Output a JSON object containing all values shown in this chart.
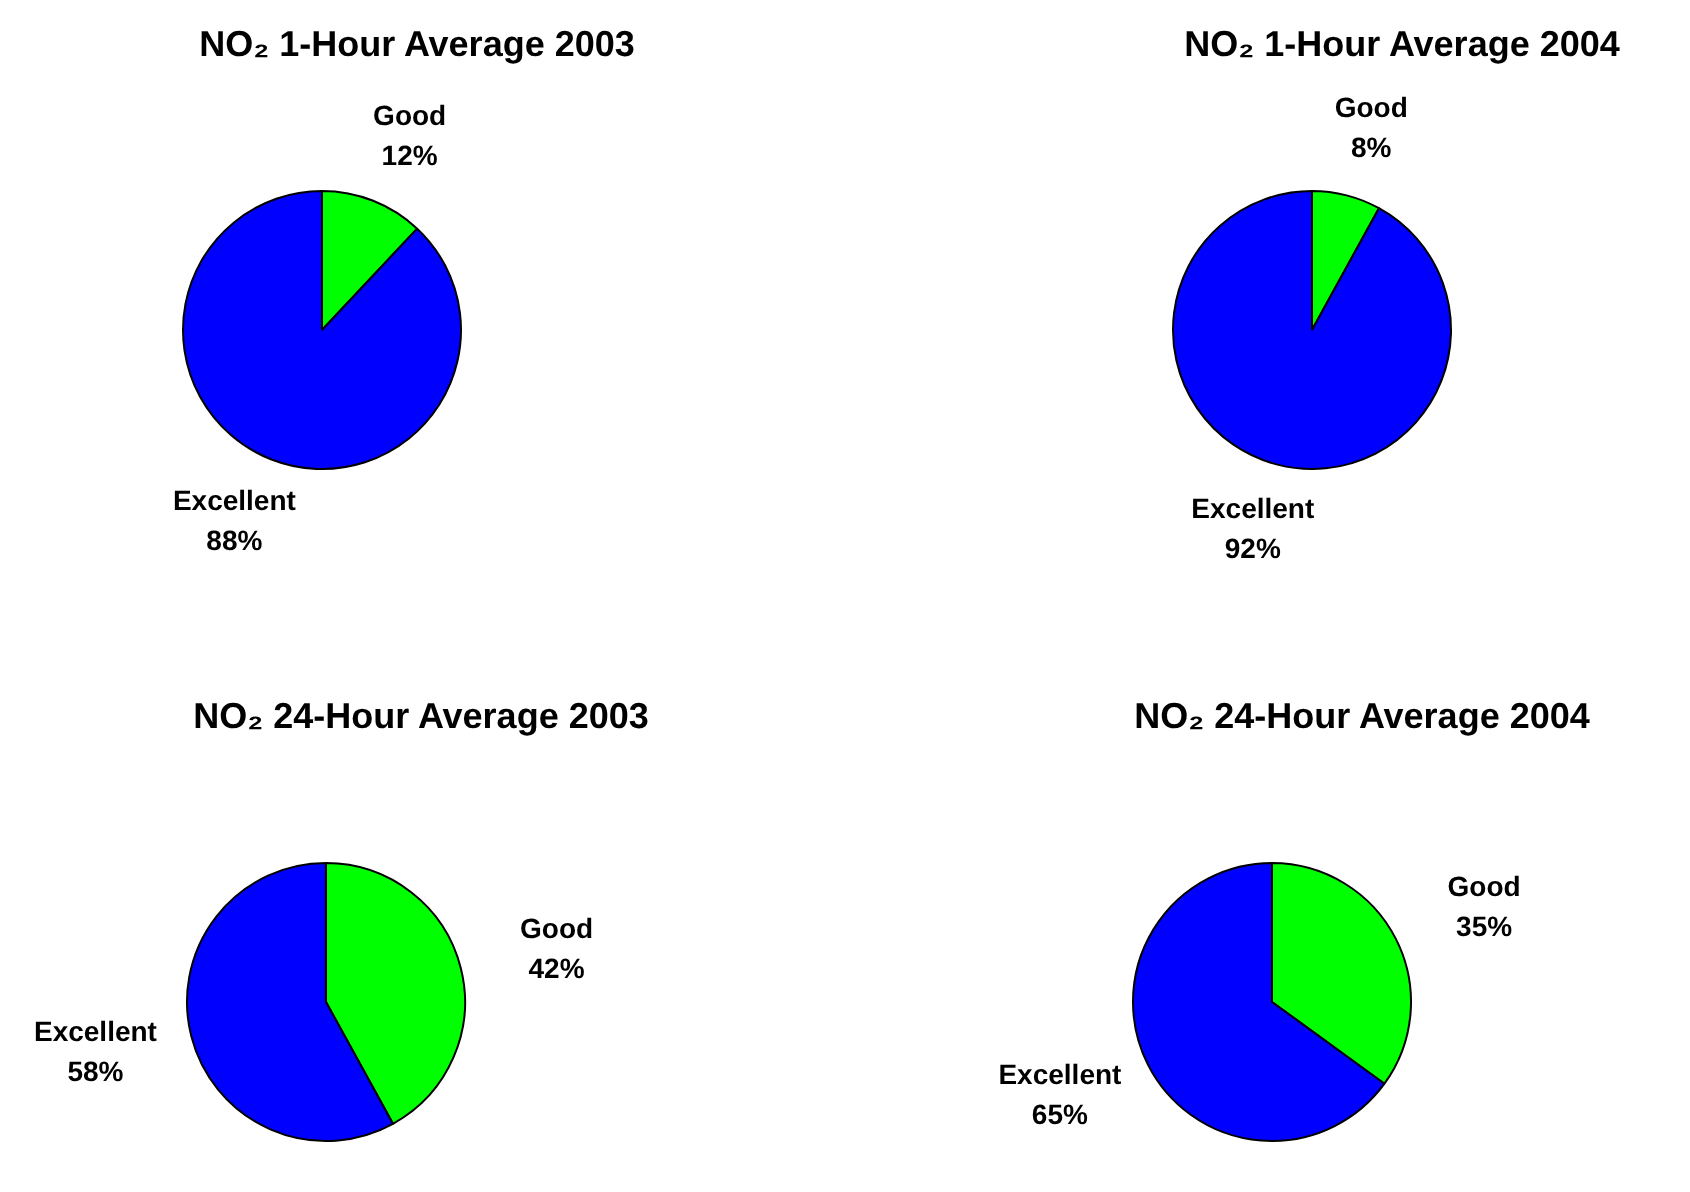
{
  "chart_data": [
    {
      "type": "pie",
      "title": "NO₂ 1-Hour Average 2003",
      "categories": [
        "Good",
        "Excellent"
      ],
      "values": [
        12,
        88
      ],
      "colors": [
        "#00ff00",
        "#0000ff"
      ],
      "value_labels": [
        "12%",
        "88%"
      ]
    },
    {
      "type": "pie",
      "title": "NO₂ 1-Hour Average 2004",
      "categories": [
        "Good",
        "Excellent"
      ],
      "values": [
        8,
        92
      ],
      "colors": [
        "#00ff00",
        "#0000ff"
      ],
      "value_labels": [
        "8%",
        "92%"
      ]
    },
    {
      "type": "pie",
      "title": "NO₂ 24-Hour Average 2003",
      "categories": [
        "Good",
        "Excellent"
      ],
      "values": [
        42,
        58
      ],
      "colors": [
        "#00ff00",
        "#0000ff"
      ],
      "value_labels": [
        "42%",
        "58%"
      ]
    },
    {
      "type": "pie",
      "title": "NO₂ 24-Hour Average 2004",
      "categories": [
        "Good",
        "Excellent"
      ],
      "values": [
        35,
        65
      ],
      "colors": [
        "#00ff00",
        "#0000ff"
      ],
      "value_labels": [
        "35%",
        "65%"
      ]
    }
  ]
}
